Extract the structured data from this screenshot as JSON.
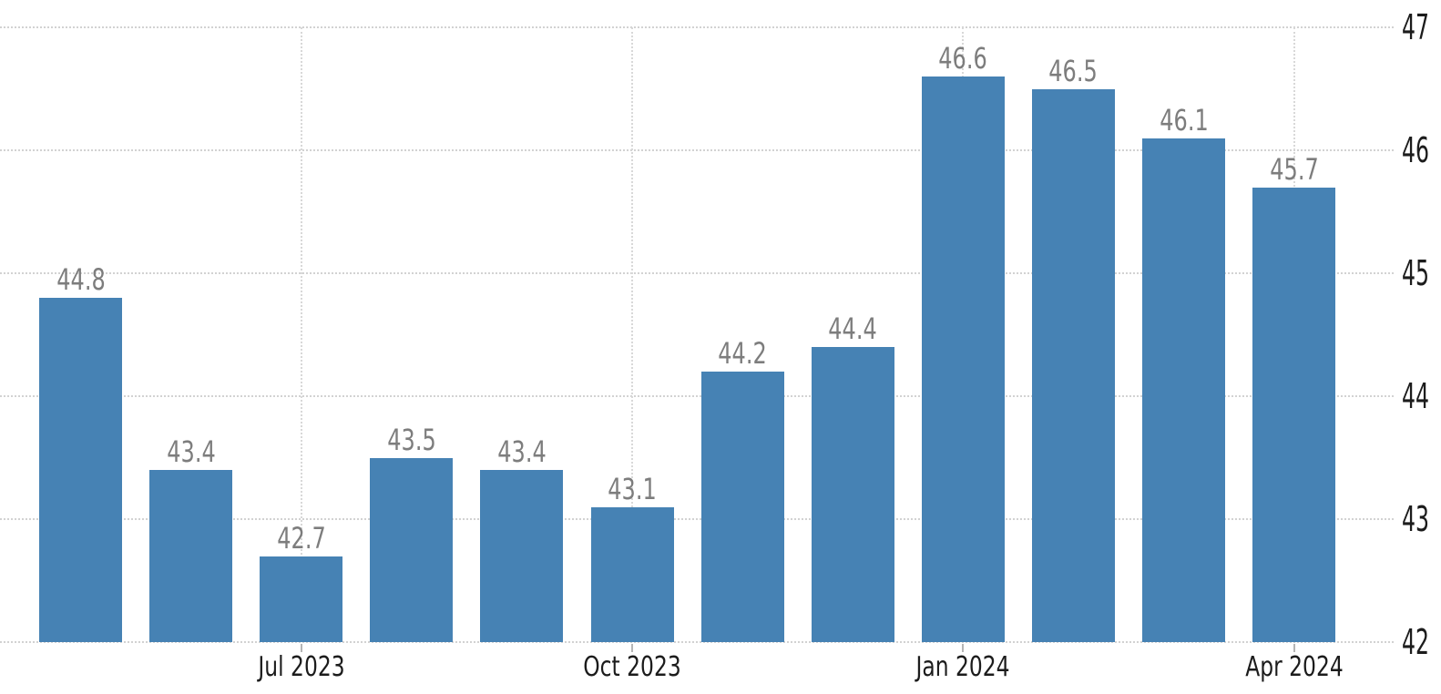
{
  "chart_data": {
    "type": "bar",
    "title": "",
    "xlabel": "",
    "ylabel": "",
    "legend": "none",
    "grid": "dotted",
    "ylim": [
      42,
      47
    ],
    "y_ticks": [
      47,
      46,
      45,
      44,
      43,
      42
    ],
    "values": [
      44.8,
      43.4,
      42.7,
      43.5,
      43.4,
      43.1,
      44.2,
      44.4,
      46.6,
      46.5,
      46.1,
      45.7
    ],
    "bar_value_labels": [
      "44.8",
      "43.4",
      "42.7",
      "43.5",
      "43.4",
      "43.1",
      "44.2",
      "44.4",
      "46.6",
      "46.5",
      "46.1",
      "45.7"
    ],
    "x_ticks": [
      {
        "label": "Jul 2023",
        "bar_index": 2
      },
      {
        "label": "Oct 2023",
        "bar_index": 5
      },
      {
        "label": "Jan 2024",
        "bar_index": 8
      },
      {
        "label": "Apr 2024",
        "bar_index": 11
      }
    ],
    "colors": {
      "bar": "#4682b4",
      "gridline": "#d2d2d2",
      "bar_label_text": "#7d7d7d",
      "axis_label_text": "#1c1c1c",
      "background": "#ffffff"
    }
  }
}
